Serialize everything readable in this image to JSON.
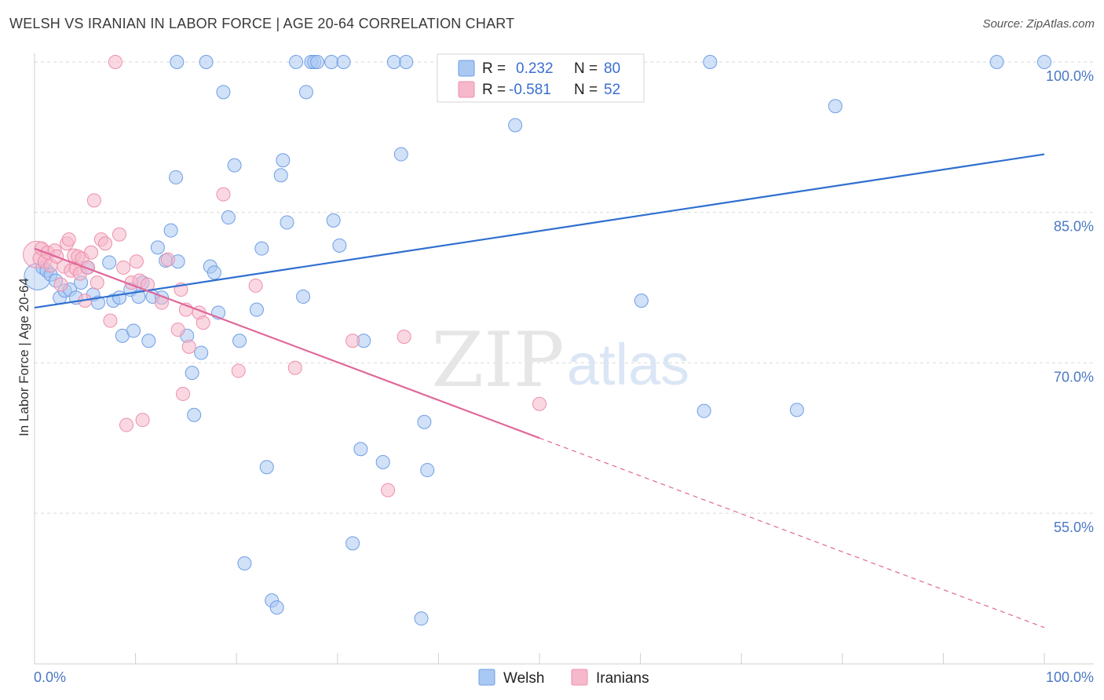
{
  "header": {
    "title": "WELSH VS IRANIAN IN LABOR FORCE | AGE 20-64 CORRELATION CHART",
    "source": "Source: ZipAtlas.com"
  },
  "watermark": {
    "zip": "ZIP",
    "atlas": "atlas"
  },
  "colors": {
    "welsh_fill": "#a9c8f2",
    "welsh_stroke": "#6f9ee6",
    "welsh_line": "#2f6fd0",
    "iranian_fill": "#f6b8cb",
    "iranian_stroke": "#ee8fac",
    "iranian_line": "#e0679a",
    "tick_label": "#4a78c4",
    "grid": "#d9d9d9"
  },
  "legend": {
    "rows": [
      {
        "r_label": "R =",
        "r_value": "0.232",
        "n_label": "N =",
        "n_value": "80"
      },
      {
        "r_label": "R =",
        "r_value": "-0.581",
        "n_label": "N =",
        "n_value": "52"
      }
    ]
  },
  "bottom_legend": {
    "welsh": "Welsh",
    "iranians": "Iranians"
  },
  "chart_data": {
    "type": "scatter",
    "title": "WELSH VS IRANIAN IN LABOR FORCE | AGE 20-64 CORRELATION CHART",
    "xlabel": "",
    "ylabel": "In Labor Force | Age 20-64",
    "xlim": [
      0,
      100
    ],
    "ylim": [
      41,
      100
    ],
    "x_tick_labels": [
      "0.0%",
      "100.0%"
    ],
    "y_ticks": [
      55,
      70,
      85,
      100
    ],
    "y_tick_labels": [
      "55.0%",
      "70.0%",
      "85.0%",
      "100.0%"
    ],
    "series": [
      {
        "name": "Welsh",
        "r": 0.232,
        "n": 80,
        "trend": {
          "x": [
            0,
            100
          ],
          "y": [
            75.5,
            90.8
          ],
          "dashed_from": null
        },
        "points": [
          [
            0.3,
            78.6
          ],
          [
            0.8,
            79.5
          ],
          [
            1.2,
            79.2
          ],
          [
            1.6,
            78.8
          ],
          [
            2.1,
            78.2
          ],
          [
            2.5,
            76.5
          ],
          [
            3.0,
            77.2
          ],
          [
            3.5,
            77.3
          ],
          [
            4.1,
            76.5
          ],
          [
            4.6,
            78.0
          ],
          [
            5.2,
            79.5
          ],
          [
            5.8,
            76.8
          ],
          [
            6.3,
            76.0
          ],
          [
            7.4,
            80.0
          ],
          [
            7.8,
            76.2
          ],
          [
            8.4,
            76.5
          ],
          [
            8.7,
            72.7
          ],
          [
            9.5,
            77.3
          ],
          [
            9.8,
            73.2
          ],
          [
            10.3,
            76.6
          ],
          [
            10.7,
            78.0
          ],
          [
            11.3,
            72.2
          ],
          [
            11.7,
            76.6
          ],
          [
            12.2,
            81.5
          ],
          [
            12.6,
            76.5
          ],
          [
            13.0,
            80.2
          ],
          [
            13.5,
            83.2
          ],
          [
            14.2,
            80.1
          ],
          [
            14.0,
            88.5
          ],
          [
            15.1,
            72.7
          ],
          [
            15.6,
            69.0
          ],
          [
            15.8,
            64.8
          ],
          [
            16.5,
            71.0
          ],
          [
            17.4,
            79.6
          ],
          [
            17.8,
            79.0
          ],
          [
            18.2,
            75.0
          ],
          [
            18.7,
            97.0
          ],
          [
            19.2,
            84.5
          ],
          [
            19.8,
            89.7
          ],
          [
            20.3,
            72.2
          ],
          [
            20.8,
            50.0
          ],
          [
            22.0,
            75.3
          ],
          [
            22.5,
            81.4
          ],
          [
            23.0,
            59.6
          ],
          [
            23.5,
            46.3
          ],
          [
            24.0,
            45.6
          ],
          [
            24.4,
            88.7
          ],
          [
            24.6,
            90.2
          ],
          [
            25.0,
            84.0
          ],
          [
            25.9,
            100.0
          ],
          [
            26.6,
            76.6
          ],
          [
            26.9,
            97.0
          ],
          [
            27.4,
            100.0
          ],
          [
            27.7,
            100.0
          ],
          [
            28.0,
            100.0
          ],
          [
            29.4,
            100.0
          ],
          [
            29.6,
            84.2
          ],
          [
            30.2,
            81.7
          ],
          [
            30.6,
            100.0
          ],
          [
            31.5,
            52.0
          ],
          [
            32.3,
            61.4
          ],
          [
            32.6,
            72.2
          ],
          [
            34.5,
            60.1
          ],
          [
            35.6,
            100.0
          ],
          [
            36.3,
            90.8
          ],
          [
            36.8,
            100.0
          ],
          [
            38.3,
            44.5
          ],
          [
            38.6,
            64.1
          ],
          [
            38.9,
            59.3
          ],
          [
            41.0,
            100.0
          ],
          [
            47.6,
            93.7
          ],
          [
            60.1,
            76.2
          ],
          [
            66.3,
            65.2
          ],
          [
            66.9,
            100.0
          ],
          [
            75.5,
            65.3
          ],
          [
            79.3,
            95.6
          ],
          [
            95.3,
            100.0
          ],
          [
            100.0,
            100.0
          ],
          [
            17.0,
            100.0
          ],
          [
            14.1,
            100.0
          ]
        ]
      },
      {
        "name": "Iranians",
        "r": -0.581,
        "n": 52,
        "trend": {
          "x": [
            0,
            50,
            100
          ],
          "y": [
            81.4,
            62.5,
            43.6
          ],
          "dashed_from": 50
        },
        "points": [
          [
            0.2,
            80.8
          ],
          [
            0.5,
            80.4
          ],
          [
            0.7,
            81.4
          ],
          [
            1.0,
            80.1
          ],
          [
            1.3,
            81.0
          ],
          [
            1.6,
            79.7
          ],
          [
            2.0,
            81.2
          ],
          [
            2.2,
            80.6
          ],
          [
            2.6,
            77.8
          ],
          [
            2.9,
            79.6
          ],
          [
            3.2,
            81.9
          ],
          [
            3.4,
            82.3
          ],
          [
            3.6,
            79.2
          ],
          [
            3.9,
            80.7
          ],
          [
            4.1,
            79.4
          ],
          [
            4.3,
            80.6
          ],
          [
            4.5,
            78.9
          ],
          [
            4.7,
            80.4
          ],
          [
            5.0,
            76.2
          ],
          [
            5.3,
            79.5
          ],
          [
            5.6,
            81.0
          ],
          [
            5.9,
            86.2
          ],
          [
            6.2,
            78.0
          ],
          [
            6.6,
            82.3
          ],
          [
            7.0,
            81.9
          ],
          [
            7.5,
            74.2
          ],
          [
            8.0,
            100.0
          ],
          [
            8.4,
            82.8
          ],
          [
            8.8,
            79.5
          ],
          [
            9.1,
            63.8
          ],
          [
            9.6,
            78.0
          ],
          [
            10.1,
            80.1
          ],
          [
            10.4,
            78.2
          ],
          [
            10.7,
            64.3
          ],
          [
            11.2,
            77.8
          ],
          [
            12.6,
            76.0
          ],
          [
            13.2,
            80.3
          ],
          [
            14.2,
            73.3
          ],
          [
            14.5,
            77.3
          ],
          [
            14.7,
            66.9
          ],
          [
            15.0,
            75.3
          ],
          [
            15.3,
            71.6
          ],
          [
            16.3,
            75.0
          ],
          [
            16.7,
            74.0
          ],
          [
            18.7,
            86.8
          ],
          [
            20.2,
            69.2
          ],
          [
            21.9,
            77.7
          ],
          [
            25.8,
            69.5
          ],
          [
            31.5,
            72.2
          ],
          [
            35.0,
            57.3
          ],
          [
            36.6,
            72.6
          ],
          [
            50.0,
            65.9
          ]
        ]
      }
    ]
  }
}
